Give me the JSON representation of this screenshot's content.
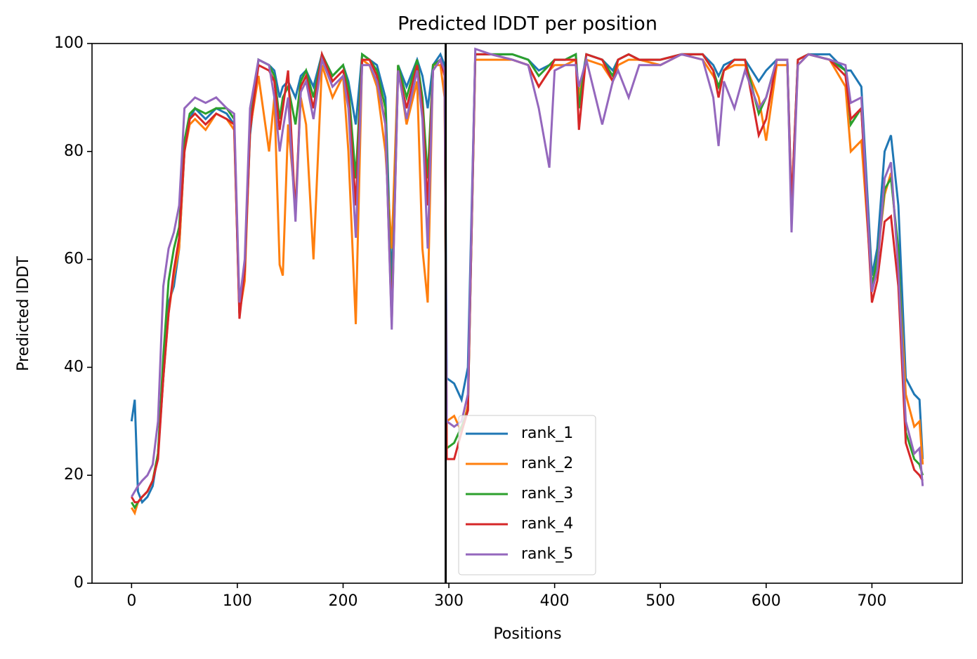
{
  "chart_data": {
    "type": "line",
    "title": "Predicted lDDT per position",
    "xlabel": "Positions",
    "ylabel": "Predicted lDDT",
    "xlim": [
      -37.4,
      785.4
    ],
    "ylim": [
      0,
      100
    ],
    "xticks": [
      0,
      100,
      200,
      300,
      400,
      500,
      600,
      700
    ],
    "yticks": [
      0,
      20,
      40,
      60,
      80,
      100
    ],
    "vline": 297,
    "vline_color": "#000000",
    "legend_loc": "lower center",
    "grid": false,
    "x": [
      0,
      3,
      6,
      10,
      15,
      20,
      25,
      30,
      35,
      40,
      45,
      50,
      55,
      60,
      70,
      80,
      90,
      97,
      102,
      107,
      112,
      120,
      130,
      135,
      140,
      143,
      148,
      155,
      160,
      165,
      172,
      180,
      190,
      200,
      205,
      212,
      218,
      225,
      232,
      240,
      246,
      252,
      260,
      270,
      275,
      280,
      285,
      292,
      296,
      298,
      305,
      312,
      318,
      325,
      340,
      360,
      375,
      385,
      395,
      400,
      410,
      420,
      423,
      430,
      445,
      455,
      460,
      470,
      480,
      500,
      520,
      540,
      550,
      555,
      560,
      570,
      580,
      593,
      600,
      610,
      620,
      624,
      630,
      640,
      660,
      675,
      680,
      690,
      700,
      705,
      712,
      718,
      725,
      732,
      740,
      745,
      748
    ],
    "series": [
      {
        "name": "rank_1",
        "color": "#1f77b4",
        "values": [
          30,
          34,
          17,
          15,
          16,
          18,
          24,
          38,
          52,
          55,
          62,
          80,
          86,
          88,
          86,
          88,
          87,
          85,
          50,
          58,
          83,
          97,
          96,
          95,
          90,
          92,
          93,
          90,
          94,
          95,
          92,
          98,
          94,
          96,
          93,
          85,
          98,
          97,
          96,
          90,
          55,
          96,
          92,
          97,
          94,
          88,
          96,
          98,
          96,
          38,
          37,
          34,
          40,
          98,
          98,
          98,
          97,
          95,
          96,
          97,
          97,
          98,
          90,
          98,
          97,
          95,
          97,
          98,
          97,
          97,
          98,
          98,
          96,
          94,
          96,
          97,
          97,
          93,
          95,
          97,
          97,
          70,
          97,
          98,
          98,
          95,
          95,
          92,
          57,
          62,
          80,
          83,
          70,
          38,
          35,
          34,
          23
        ]
      },
      {
        "name": "rank_2",
        "color": "#ff7f0e",
        "values": [
          14,
          13,
          15,
          16,
          17,
          19,
          24,
          38,
          50,
          57,
          62,
          80,
          85,
          86,
          84,
          87,
          86,
          84,
          50,
          56,
          84,
          94,
          80,
          90,
          59,
          57,
          85,
          70,
          90,
          85,
          60,
          96,
          90,
          94,
          80,
          48,
          97,
          96,
          92,
          80,
          62,
          96,
          85,
          93,
          62,
          52,
          96,
          96,
          90,
          30,
          31,
          28,
          33,
          97,
          97,
          97,
          96,
          92,
          95,
          96,
          96,
          97,
          90,
          97,
          96,
          93,
          96,
          97,
          97,
          96,
          98,
          97,
          94,
          92,
          95,
          96,
          96,
          90,
          82,
          96,
          96,
          68,
          96,
          98,
          97,
          92,
          80,
          82,
          55,
          60,
          72,
          76,
          60,
          35,
          29,
          30,
          22
        ]
      },
      {
        "name": "rank_3",
        "color": "#2ca02c",
        "values": [
          15,
          14,
          15,
          16,
          17,
          19,
          24,
          42,
          56,
          62,
          66,
          82,
          87,
          88,
          87,
          88,
          88,
          86,
          50,
          58,
          85,
          97,
          96,
          94,
          86,
          90,
          92,
          85,
          93,
          95,
          90,
          98,
          94,
          96,
          92,
          75,
          98,
          97,
          95,
          88,
          50,
          96,
          90,
          97,
          90,
          75,
          96,
          97,
          95,
          25,
          26,
          29,
          32,
          98,
          98,
          98,
          97,
          94,
          96,
          97,
          97,
          98,
          88,
          98,
          97,
          94,
          97,
          98,
          97,
          97,
          98,
          98,
          95,
          92,
          95,
          97,
          97,
          87,
          90,
          97,
          97,
          68,
          97,
          98,
          97,
          95,
          85,
          88,
          55,
          60,
          73,
          75,
          62,
          28,
          23,
          22,
          20
        ]
      },
      {
        "name": "rank_4",
        "color": "#d62728",
        "values": [
          16,
          15,
          15,
          16,
          17,
          19,
          23,
          38,
          50,
          58,
          64,
          80,
          86,
          87,
          85,
          87,
          86,
          85,
          49,
          58,
          84,
          96,
          95,
          93,
          84,
          88,
          95,
          68,
          92,
          94,
          88,
          98,
          93,
          95,
          90,
          70,
          97,
          97,
          94,
          85,
          48,
          95,
          88,
          96,
          88,
          70,
          95,
          97,
          94,
          23,
          23,
          28,
          32,
          98,
          98,
          97,
          96,
          92,
          95,
          97,
          97,
          97,
          84,
          98,
          97,
          93,
          97,
          98,
          97,
          97,
          98,
          98,
          95,
          90,
          95,
          97,
          97,
          83,
          86,
          97,
          97,
          70,
          97,
          98,
          97,
          94,
          86,
          88,
          52,
          56,
          67,
          68,
          55,
          26,
          21,
          20,
          19
        ]
      },
      {
        "name": "rank_5",
        "color": "#9467bd",
        "values": [
          16,
          17,
          18,
          19,
          20,
          22,
          30,
          55,
          62,
          65,
          70,
          88,
          89,
          90,
          89,
          90,
          88,
          87,
          52,
          60,
          88,
          97,
          96,
          90,
          80,
          84,
          90,
          67,
          91,
          93,
          86,
          97,
          92,
          94,
          88,
          64,
          96,
          96,
          93,
          85,
          47,
          95,
          86,
          95,
          86,
          62,
          95,
          97,
          95,
          30,
          29,
          30,
          35,
          99,
          98,
          97,
          96,
          88,
          77,
          95,
          96,
          96,
          92,
          97,
          85,
          93,
          95,
          90,
          96,
          96,
          98,
          97,
          90,
          81,
          93,
          88,
          95,
          88,
          90,
          97,
          97,
          65,
          96,
          98,
          97,
          96,
          89,
          90,
          54,
          58,
          75,
          78,
          58,
          30,
          24,
          25,
          18
        ]
      }
    ]
  }
}
